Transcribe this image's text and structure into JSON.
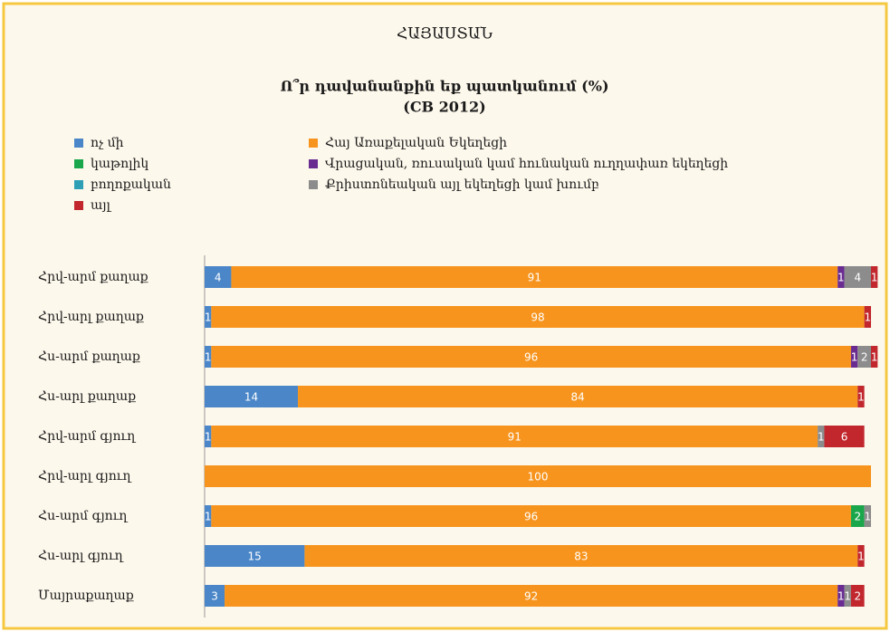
{
  "chart_data": {
    "type": "stacked-bar-horizontal",
    "title": "ՀԱՅԱՍՏԱՆ",
    "subtitle": [
      "Ո՞ր դավանանքին եք պատկանում (%)",
      "(CB 2012)"
    ],
    "categories": [
      "Հրվ-արմ քաղաք",
      "Հրվ-արլ քաղաք",
      "Հս-արմ քաղաք",
      "Հս-արլ քաղաք",
      "Հրվ-արմ գյուղ",
      "Հրվ-արլ գյուղ",
      "Հս-արմ գյուղ",
      "Հս-արլ գյուղ",
      "Մայրաքաղաք"
    ],
    "xlim": [
      0,
      100
    ],
    "series": [
      {
        "name": "ոչ մի",
        "color": "#4a86c8",
        "values": [
          4,
          1,
          1,
          14,
          1,
          0,
          1,
          15,
          3
        ]
      },
      {
        "name": "Հայ Առաքելական Եկեղեցի",
        "color": "#f7941d",
        "values": [
          91,
          98,
          96,
          84,
          91,
          100,
          96,
          83,
          92
        ]
      },
      {
        "name": "կաթոլիկ",
        "color": "#1aa64a",
        "values": [
          0,
          0,
          0,
          0,
          0,
          0,
          2,
          0,
          0
        ]
      },
      {
        "name": "Վրացական, ռուսական կամ հունական ուղղափառ եկեղեցի",
        "color": "#6a2c91",
        "values": [
          1,
          0,
          1,
          0,
          0,
          0,
          0,
          0,
          1
        ]
      },
      {
        "name": "բողոքական",
        "color": "#2e9fb5",
        "values": [
          0,
          0,
          0,
          0,
          0,
          0,
          0,
          0,
          0
        ]
      },
      {
        "name": "Քրիստոնեական այլ եկեղեցի կամ խումբ",
        "color": "#8c8c8c",
        "values": [
          4,
          0,
          2,
          0,
          1,
          0,
          1,
          0,
          1
        ]
      },
      {
        "name": "այլ",
        "color": "#c1272d",
        "values": [
          1,
          1,
          1,
          1,
          6,
          0,
          0,
          1,
          2
        ]
      }
    ]
  }
}
